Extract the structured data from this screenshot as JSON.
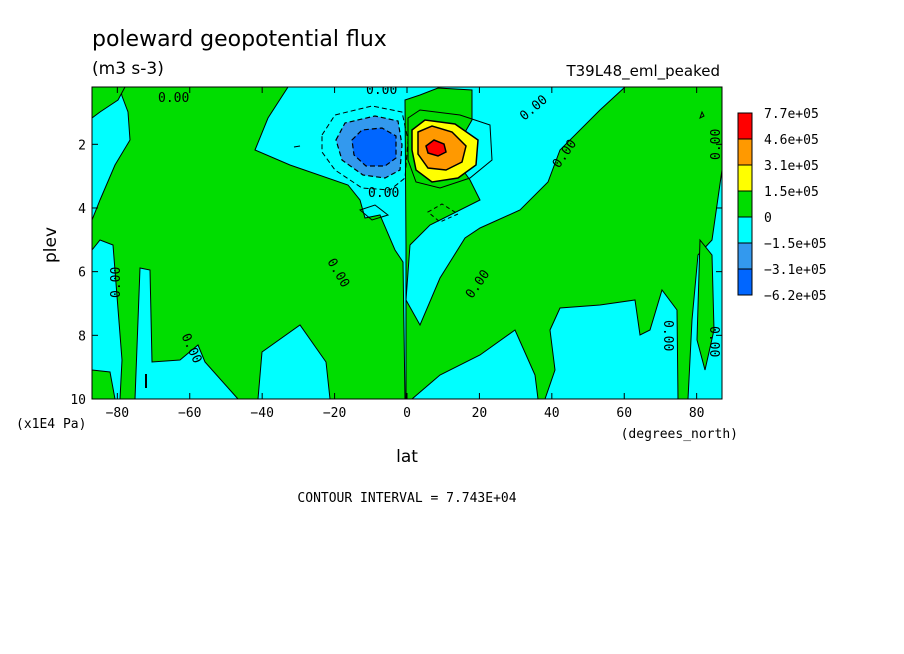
{
  "chart_data": {
    "type": "heatmap",
    "title": "poleward geopotential flux",
    "subtitle": "(m3 s-3)",
    "experiment": "T39L48_eml_peaked",
    "xlabel": "lat",
    "xunit": "(degrees_north)",
    "ylabel": "plev",
    "yunit": "(x1E4 Pa)",
    "xlim": [
      -87,
      87
    ],
    "ylim": [
      10,
      0.2
    ],
    "x_ticks": [
      -80,
      -60,
      -40,
      -20,
      0,
      20,
      40,
      60,
      80
    ],
    "x_tick_labels": [
      "−80",
      "−60",
      "−40",
      "−20",
      "0",
      "20",
      "40",
      "60",
      "80"
    ],
    "y_ticks": [
      2,
      4,
      6,
      8,
      10
    ],
    "y_tick_labels": [
      "2",
      "4",
      "6",
      "8",
      "10"
    ],
    "contour_interval": "CONTOUR INTERVAL = 7.743E+04",
    "contour_labels": [
      "0.00",
      "0.00",
      "0.00",
      "0.00",
      "0.00",
      "0.00",
      "0.00",
      "0.00",
      "0.00",
      "0.00",
      "0.00",
      "0.00"
    ],
    "colorbar": {
      "labels": [
        "7.7e+05",
        "4.6e+05",
        "3.1e+05",
        "1.5e+05",
        "0",
        "−1.5e+05",
        "−3.1e+05",
        "−6.2e+05"
      ],
      "colors": [
        "#ff0000",
        "#ff9900",
        "#ffff00",
        "#00dd00",
        "#00ffff",
        "#3399ee",
        "#0066ff"
      ]
    },
    "features": [
      {
        "kind": "negative_max",
        "lat": -8,
        "plev": 2.1,
        "value": -620000
      },
      {
        "kind": "positive_max",
        "lat": 8,
        "plev": 2.1,
        "value": 770000
      }
    ],
    "colors": {
      "positive": "#00dd00",
      "negative": "#00ffff"
    }
  }
}
